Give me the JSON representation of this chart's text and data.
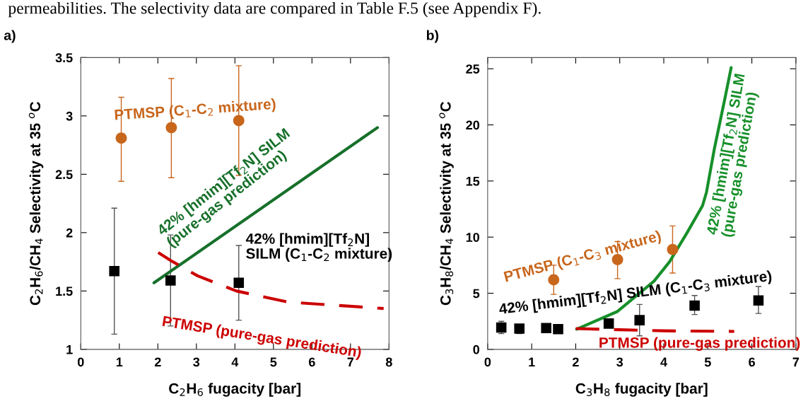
{
  "chart_data": [
    {
      "type": "scatter",
      "title": "a)",
      "xlabel": "C$_{2}$H$_{6}$ fugacity [bar]",
      "ylabel": "C$_{2}$H$_{6}$/CH$_{4}$ Selectivity at 35 $^{o}$C",
      "xlim": [
        0,
        8
      ],
      "xticks": [
        0,
        1,
        2,
        3,
        4,
        5,
        6,
        7,
        8
      ],
      "ylim": [
        1,
        3.5
      ],
      "yticks": [
        1,
        1.5,
        2,
        2.5,
        3,
        3.5
      ],
      "grid": false,
      "annotations": [
        "permeabilities. The selectivity data are compared in Table F.5 (see Appendix F)."
      ],
      "series": [
        {
          "name": "PTMSP (C$_{1}$-C$_{2}$ mixture)",
          "color": "#c8661c",
          "marker": "circle",
          "x": [
            1.05,
            2.35,
            4.1
          ],
          "values": [
            2.81,
            2.9,
            2.96
          ],
          "errors": [
            [
              2.44,
              3.16
            ],
            [
              2.47,
              3.32
            ],
            [
              2.49,
              3.43
            ]
          ]
        },
        {
          "name": "42% [hmim][Tf$_{2}$N]\nSILM (C$_{1}$-C$_{2}$ mixture)",
          "color": "#000000",
          "marker": "square",
          "x": [
            0.87,
            2.33,
            4.1
          ],
          "values": [
            1.67,
            1.59,
            1.57
          ],
          "errors": [
            [
              1.13,
              2.21
            ],
            [
              1.2,
              1.98
            ],
            [
              1.25,
              1.89
            ]
          ]
        },
        {
          "type": "line",
          "name": "42% [hmim][Tf$_{2}$N] SILM\n(pure-gas prediction)",
          "color": "#17702a",
          "line_style": "solid",
          "x": [
            1.9,
            7.7
          ],
          "values": [
            1.57,
            2.9
          ]
        },
        {
          "type": "line",
          "name": "PTMSP (pure-gas prediction)",
          "color": "#cc0000",
          "line_style": "dashed",
          "x": [
            2.01,
            2.34,
            3.03,
            4.04,
            5.38,
            7.86
          ],
          "values": [
            1.83,
            1.76,
            1.63,
            1.5,
            1.405,
            1.35
          ]
        }
      ]
    },
    {
      "type": "scatter",
      "title": "b)",
      "xlabel": "C$_{3}$H$_{8}$ fugacity [bar]",
      "ylabel": "C$_{3}$H$_{8}$/CH$_{4}$ Selectivity at 35 $^{o}$C",
      "xlim": [
        0,
        7
      ],
      "xticks": [
        0,
        1,
        2,
        3,
        4,
        5,
        6,
        7
      ],
      "ylim": [
        0,
        26
      ],
      "yticks": [
        0,
        5,
        10,
        15,
        20,
        25
      ],
      "grid": false,
      "series": [
        {
          "name": "PTMSP (C$_{1}$-C$_{3}$ mixture)",
          "color": "#c8661c",
          "marker": "circle",
          "x": [
            1.5,
            2.95,
            4.2
          ],
          "values": [
            6.2,
            8.0,
            8.9
          ],
          "errors": [
            [
              4.9,
              7.5
            ],
            [
              6.3,
              9.6
            ],
            [
              6.8,
              11.0
            ]
          ]
        },
        {
          "name": "42% [hmim][Tf$_{2}$N] SILM (C$_{1}$-C$_{3}$ mixture)",
          "color": "#000000",
          "marker": "square",
          "x": [
            0.31,
            0.72,
            1.33,
            1.6,
            2.75,
            3.45,
            4.7,
            6.15
          ],
          "values": [
            1.95,
            1.85,
            1.9,
            1.8,
            2.3,
            2.6,
            3.9,
            4.35
          ],
          "errors": [
            [
              1.4,
              2.5
            ],
            [
              1.4,
              2.2
            ],
            null,
            null,
            null,
            [
              1.2,
              4.0
            ],
            [
              3.1,
              4.8
            ],
            [
              3.2,
              5.6
            ]
          ]
        },
        {
          "type": "line",
          "name": "42% [hmim][Tf$_{2}$N] SILM\n(pure-gas prediction)",
          "color": "#17902a",
          "line_style": "solid",
          "x": [
            2.02,
            2.95,
            3.78,
            4.13,
            4.53,
            4.88,
            4.97,
            5.15,
            5.38,
            5.53
          ],
          "values": [
            1.8,
            3.38,
            6.08,
            7.8,
            10.4,
            12.8,
            14.0,
            17.9,
            22.2,
            25.1
          ]
        },
        {
          "type": "line",
          "name": "PTMSP (pure-gas prediction)",
          "color": "#cc0000",
          "line_style": "dashed",
          "x": [
            2.0,
            3.0,
            4.0,
            5.6
          ],
          "values": [
            1.85,
            1.75,
            1.65,
            1.6
          ]
        }
      ]
    }
  ]
}
